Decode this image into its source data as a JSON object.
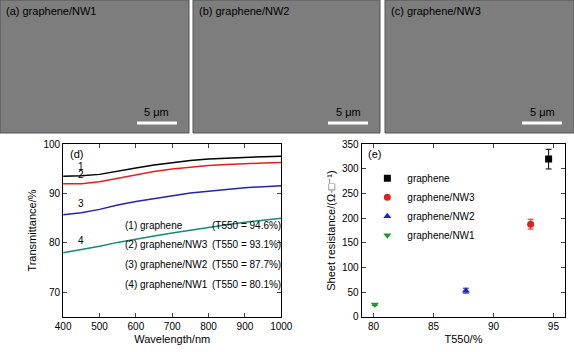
{
  "images": [
    {
      "label": "(a) graphene/NW1",
      "scale_bar": "5 μm"
    },
    {
      "label": "(b) graphene/NW2",
      "scale_bar": "5 μm"
    },
    {
      "label": "(c) graphene/NW3",
      "scale_bar": "5 μm"
    }
  ],
  "chart_data": [
    {
      "type": "line",
      "panel": "(d)",
      "x_label": "Wavelength/nm",
      "y_label": "Transmittance/%",
      "x": [
        400,
        450,
        500,
        550,
        600,
        650,
        700,
        750,
        800,
        850,
        900,
        950,
        1000
      ],
      "xlim": [
        400,
        1000
      ],
      "xticks": [
        400,
        500,
        600,
        700,
        800,
        900,
        1000
      ],
      "ylim": [
        65,
        100
      ],
      "yticks": [
        70,
        80,
        90,
        100
      ],
      "series": [
        {
          "name": "(1) graphene",
          "label": "1",
          "note": "(T550 = 94.6%)",
          "color": "#000000",
          "values": [
            93.5,
            93.6,
            93.9,
            94.6,
            95.2,
            95.8,
            96.3,
            96.7,
            97.0,
            97.2,
            97.4,
            97.5,
            97.6
          ]
        },
        {
          "name": "(2) graphene/NW3",
          "label": "2",
          "note": "(T550 = 93.1%)",
          "color": "#e3211c",
          "values": [
            92.0,
            92.0,
            92.4,
            93.1,
            93.8,
            94.5,
            95.0,
            95.4,
            95.7,
            95.9,
            96.1,
            96.2,
            96.3
          ]
        },
        {
          "name": "(3) graphene/NW2",
          "label": "3",
          "note": "(T550 = 87.7%)",
          "color": "#2323b8",
          "values": [
            85.7,
            86.1,
            86.8,
            87.7,
            88.4,
            89.0,
            89.6,
            90.1,
            90.5,
            90.9,
            91.2,
            91.4,
            91.6
          ]
        },
        {
          "name": "(4) graphene/NW1",
          "label": "4",
          "note": "(T550 = 80.1%)",
          "color": "#148a78",
          "values": [
            78.0,
            78.6,
            79.3,
            80.1,
            80.8,
            81.4,
            82.0,
            82.6,
            83.2,
            83.7,
            84.2,
            84.6,
            85.0
          ]
        }
      ]
    },
    {
      "type": "scatter",
      "panel": "(e)",
      "x_label": "T550/%",
      "y_label": "Sheet resistance/(Ω·□⁻¹)",
      "xlim": [
        79,
        96
      ],
      "xticks": [
        80,
        85,
        90,
        95
      ],
      "ylim": [
        0,
        350
      ],
      "yticks": [
        0,
        50,
        100,
        150,
        200,
        250,
        300,
        350
      ],
      "legend": "upper left",
      "series": [
        {
          "name": "graphene",
          "color": "#000000",
          "marker": "square",
          "x": [
            94.6
          ],
          "values": [
            320
          ],
          "errors": [
            20
          ]
        },
        {
          "name": "graphene/NW3",
          "color": "#e3211c",
          "marker": "circle",
          "x": [
            93.1
          ],
          "values": [
            188
          ],
          "errors": [
            10
          ]
        },
        {
          "name": "graphene/NW2",
          "color": "#2323b8",
          "marker": "triangle-up",
          "x": [
            87.7
          ],
          "values": [
            53
          ],
          "errors": [
            5
          ]
        },
        {
          "name": "graphene/NW1",
          "color": "#1a9a2a",
          "marker": "triangle-down",
          "x": [
            80.1
          ],
          "values": [
            25
          ],
          "errors": [
            2
          ]
        }
      ]
    }
  ]
}
